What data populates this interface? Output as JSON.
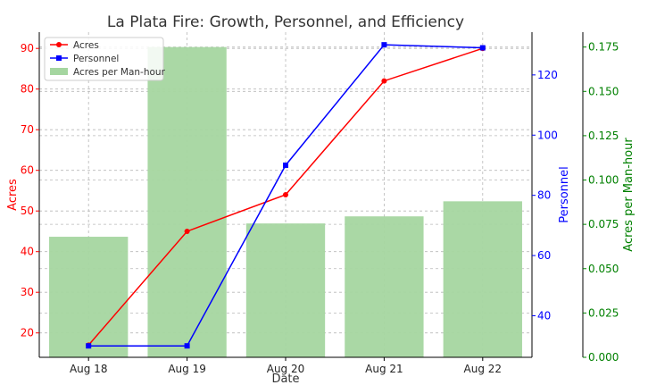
{
  "chart_data": {
    "type": "bar",
    "title": "La Plata Fire: Growth, Personnel, and Efficiency",
    "xlabel": "Date",
    "categories": [
      "Aug 18",
      "Aug 19",
      "Aug 20",
      "Aug 21",
      "Aug 22"
    ],
    "axes": {
      "left": {
        "label": "Acres",
        "color": "#ff0000",
        "ylim": [
          14,
          94
        ],
        "ticks": [
          20,
          30,
          40,
          50,
          60,
          70,
          80,
          90
        ]
      },
      "right1": {
        "label": "Personnel",
        "color": "#0000ff",
        "ylim": [
          26.2,
          134.2
        ],
        "ticks": [
          40,
          60,
          80,
          100,
          120
        ]
      },
      "right2": {
        "label": "Acres per Man-hour",
        "color": "#008000",
        "ylim": [
          0,
          0.1834
        ],
        "ticks": [
          0,
          0.025,
          0.05,
          0.075,
          0.1,
          0.125,
          0.15,
          0.175
        ],
        "tick_labels": [
          "0.000",
          "0.025",
          "0.050",
          "0.075",
          "0.100",
          "0.125",
          "0.150",
          "0.175"
        ]
      }
    },
    "series": [
      {
        "name": "Acres",
        "type": "line",
        "axis": "left",
        "color": "#ff0000",
        "marker": "circle",
        "values": [
          17,
          45,
          54,
          82,
          90
        ]
      },
      {
        "name": "Personnel",
        "type": "line",
        "axis": "right1",
        "color": "#0000ff",
        "marker": "square",
        "values": [
          30,
          30,
          90,
          130,
          129
        ]
      },
      {
        "name": "Acres per Man-hour",
        "type": "bar",
        "axis": "right2",
        "color": "#a5d6a0",
        "values": [
          0.068,
          0.175,
          0.0755,
          0.0795,
          0.088
        ]
      }
    ],
    "legend": {
      "placement": "top-left",
      "order": [
        "Acres",
        "Personnel",
        "Acres per Man-hour"
      ]
    },
    "grid": true
  }
}
